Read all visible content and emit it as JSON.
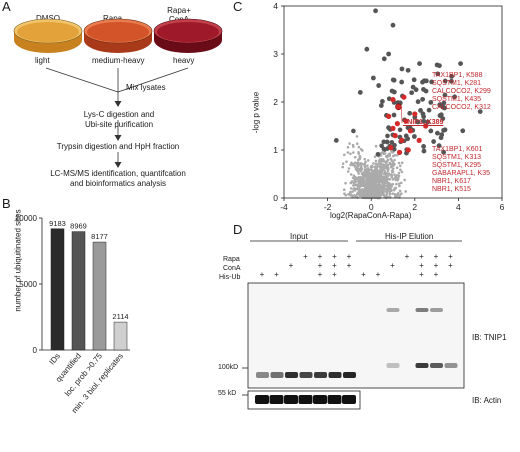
{
  "panelA": {
    "letter": "A",
    "conditions": [
      {
        "label": "DMSO",
        "sublabel": "light",
        "color": "#e3a23a",
        "rim": "#f0c46a"
      },
      {
        "label": "Rapa",
        "sublabel": "medium-heavy",
        "color": "#d4542a",
        "rim": "#e87c4e"
      },
      {
        "label": "Rapa+\nConA",
        "sublabel": "heavy",
        "color": "#9e1a2a",
        "rim": "#c0404c"
      }
    ],
    "steps": [
      "Mix lysates",
      "Lys-C digestion and",
      "Ubi-site purification",
      "Trypsin digestion and HpH fraction",
      "LC-MS/MS identification, quantifcation",
      "and bioinformatics analysis"
    ]
  },
  "panelB": {
    "letter": "B",
    "chart_data": {
      "type": "bar",
      "categories": [
        "IDs",
        "quantified",
        "loc. prob >0.75",
        "min. 3 biol. replicates"
      ],
      "values": [
        9183,
        8969,
        8177,
        2114
      ],
      "colors": [
        "#2b2b2b",
        "#555555",
        "#9a9a9a",
        "#cfcfcf"
      ],
      "ylabel": "number of ubiquitinated sites",
      "ylim": [
        0,
        10000
      ],
      "yticks": [
        "0",
        "5000",
        "10000"
      ]
    }
  },
  "panelC": {
    "letter": "C",
    "chart_data": {
      "type": "scatter",
      "xlabel": "log2(RapaConA-Rapa)",
      "ylabel": "-log p value",
      "xlim": [
        -4,
        6
      ],
      "ylim": [
        0,
        4
      ],
      "xticks": [
        "-4",
        "-2",
        "0",
        "2",
        "4",
        "6"
      ],
      "yticks": [
        "0",
        "1",
        "2",
        "3",
        "4"
      ],
      "highlight_label": "TNIP1, K389",
      "highlight_point": [
        1.25,
        1.9
      ],
      "upper_labels": [
        "TAX1BP1, K588",
        "SQSTM1, K281",
        "CALCOCO2, K299",
        "SQSTM1, K435",
        "CALCOCO2, K312"
      ],
      "lower_labels": [
        "TAX1BP1, K601",
        "SQSTM1, K313",
        "SQSTM1, K295",
        "GABARAPL1, K35",
        "NBR1, K617",
        "NBR1, K515"
      ],
      "red_points": [
        [
          1.0,
          2.05
        ],
        [
          1.5,
          2.1
        ],
        [
          0.8,
          1.7
        ],
        [
          1.2,
          1.55
        ],
        [
          1.6,
          1.6
        ],
        [
          2.0,
          1.75
        ],
        [
          1.1,
          1.3
        ],
        [
          1.4,
          1.2
        ],
        [
          1.8,
          1.4
        ],
        [
          0.9,
          1.05
        ],
        [
          1.3,
          0.95
        ],
        [
          2.2,
          1.2
        ],
        [
          1.7,
          1.0
        ],
        [
          2.5,
          1.5
        ],
        [
          1.0,
          1.45
        ]
      ],
      "colors": {
        "nonsig": "#aaaaaa",
        "sig": "#555555",
        "red": "#d42a2a"
      }
    }
  },
  "panelD": {
    "letter": "D",
    "group_labels": [
      "Input",
      "His-IP Elution"
    ],
    "row_labels": [
      "Rapa",
      "ConA",
      "His-Ub"
    ],
    "rows": [
      [
        "",
        "",
        "",
        "+",
        "+",
        "+",
        "+",
        "",
        "",
        "",
        "+",
        "+",
        "+",
        "+"
      ],
      [
        "",
        "",
        "+",
        "",
        "+",
        "+",
        "+",
        "",
        "",
        "+",
        "",
        "+",
        "+",
        "+"
      ],
      [
        "+",
        "+",
        "",
        "",
        "+",
        "+",
        "",
        "+",
        "+",
        "",
        "",
        "+",
        "+",
        ""
      ]
    ],
    "markers": [
      "100kD",
      "55 kD"
    ],
    "blot_labels": [
      "IB: TNIP1",
      "IB: Actin"
    ]
  }
}
